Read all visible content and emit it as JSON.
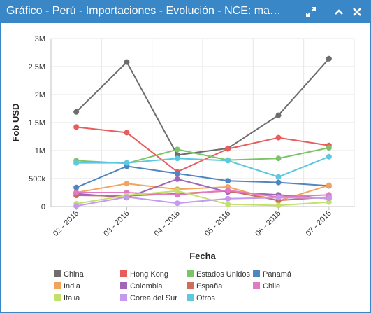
{
  "window": {
    "title": "Gráfico - Perú - Importaciones - Evolución - NCE: manuf…"
  },
  "colors": {
    "titlebar": "#3a87c8",
    "China": "#6d6d6d",
    "Hong Kong": "#e85c5c",
    "Estados Unidos": "#7cc466",
    "Panamá": "#4f86c0",
    "India": "#f2a45e",
    "Colombia": "#a066b7",
    "España": "#cc6e5a",
    "Chile": "#e07ac4",
    "Italia": "#c4e06a",
    "Corea del Sur": "#c39af0",
    "Otros": "#5ec8e0"
  },
  "icons": [
    "expand-icon",
    "collapse-icon",
    "close-icon"
  ],
  "chart_data": {
    "type": "line",
    "title": "",
    "xlabel": "Fecha",
    "ylabel": "Fob USD",
    "categories": [
      "02 - 2016",
      "03 - 2016",
      "04 - 2016",
      "05 - 2016",
      "06 - 2016",
      "07 - 2016"
    ],
    "ylim": [
      0,
      3000000
    ],
    "yticks": [
      0,
      500000,
      1000000,
      1500000,
      2000000,
      2500000,
      3000000
    ],
    "ytick_labels": [
      "0",
      "500k",
      "1M",
      "1.5M",
      "2M",
      "2.5M",
      "3M"
    ],
    "grid": true,
    "legend_position": "bottom",
    "series": [
      {
        "name": "China",
        "values": [
          1690000,
          2580000,
          920000,
          1040000,
          1630000,
          2640000
        ]
      },
      {
        "name": "Hong Kong",
        "values": [
          1420000,
          1320000,
          620000,
          1030000,
          1230000,
          1090000
        ]
      },
      {
        "name": "Estados Unidos",
        "values": [
          820000,
          770000,
          1020000,
          830000,
          860000,
          1050000
        ]
      },
      {
        "name": "Panamá",
        "values": [
          340000,
          720000,
          590000,
          460000,
          430000,
          370000
        ]
      },
      {
        "name": "India",
        "values": [
          250000,
          410000,
          310000,
          350000,
          100000,
          380000
        ]
      },
      {
        "name": "Colombia",
        "values": [
          230000,
          160000,
          490000,
          260000,
          210000,
          140000
        ]
      },
      {
        "name": "España",
        "values": [
          200000,
          190000,
          230000,
          280000,
          110000,
          170000
        ]
      },
      {
        "name": "Chile",
        "values": [
          250000,
          250000,
          210000,
          290000,
          170000,
          210000
        ]
      },
      {
        "name": "Italia",
        "values": [
          50000,
          200000,
          280000,
          40000,
          20000,
          80000
        ]
      },
      {
        "name": "Corea del Sur",
        "values": [
          10000,
          170000,
          60000,
          140000,
          160000,
          150000
        ]
      },
      {
        "name": "Otros",
        "values": [
          780000,
          780000,
          860000,
          820000,
          530000,
          890000
        ]
      }
    ]
  }
}
